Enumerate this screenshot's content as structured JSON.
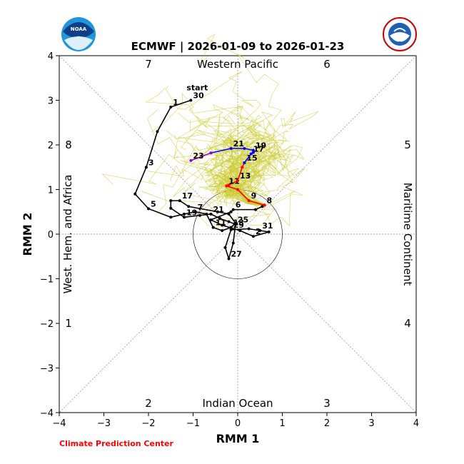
{
  "chart_data": {
    "type": "scatter",
    "title": "ECMWF | 2026-01-09 to 2026-01-23",
    "xlabel": "RMM 1",
    "ylabel": "RMM 2",
    "xlim": [
      -4,
      4
    ],
    "ylim": [
      -4,
      4
    ],
    "xticks": [
      "−4",
      "−3",
      "−2",
      "−1",
      "0",
      "1",
      "2",
      "3",
      "4"
    ],
    "yticks": [
      "−4",
      "−3",
      "−2",
      "−1",
      "0",
      "1",
      "2",
      "3",
      "4"
    ],
    "phase_numbers": {
      "p1": "1",
      "p2": "2",
      "p3": "3",
      "p4": "4",
      "p5": "5",
      "p6": "6",
      "p7": "7",
      "p8": "8"
    },
    "region_labels": {
      "top": "Western Pacific",
      "bottom": "Indian Ocean",
      "left": "West. Hem. and Africa",
      "right": "Maritime Continent"
    },
    "credit": "Climate Prediction Center",
    "start_label": "start",
    "colors": {
      "observed": "#000000",
      "forecast_week1": "#ff0000",
      "forecast_week2": "#0000ff",
      "forecast_tail": "#9900cc",
      "ensemble": "#cccc33",
      "credit": "#ff0000"
    },
    "observed_path": [
      {
        "x": -1.05,
        "y": 3.0,
        "label": "30"
      },
      {
        "x": -1.5,
        "y": 2.85,
        "label": "1"
      },
      {
        "x": -1.8,
        "y": 2.3,
        "label": ""
      },
      {
        "x": -2.05,
        "y": 1.5,
        "label": "3"
      },
      {
        "x": -2.3,
        "y": 0.9,
        "label": ""
      },
      {
        "x": -2.0,
        "y": 0.57,
        "label": "5"
      },
      {
        "x": -1.5,
        "y": 0.38,
        "label": ""
      },
      {
        "x": -1.2,
        "y": 0.45,
        "label": ""
      },
      {
        "x": -0.95,
        "y": 0.5,
        "label": "7"
      },
      {
        "x": -0.7,
        "y": 0.45,
        "label": ""
      },
      {
        "x": -0.55,
        "y": 0.15,
        "label": "11"
      },
      {
        "x": -0.35,
        "y": 0.08,
        "label": ""
      },
      {
        "x": -0.15,
        "y": 0.15,
        "label": "13"
      },
      {
        "x": -0.05,
        "y": 0.25,
        "label": ""
      },
      {
        "x": -0.2,
        "y": 0.45,
        "label": ""
      },
      {
        "x": -0.45,
        "y": 0.5,
        "label": ""
      },
      {
        "x": -1.1,
        "y": 0.62,
        "label": ""
      },
      {
        "x": -1.3,
        "y": 0.75,
        "label": "17"
      },
      {
        "x": -1.5,
        "y": 0.75,
        "label": ""
      },
      {
        "x": -1.5,
        "y": 0.58,
        "label": ""
      },
      {
        "x": -1.2,
        "y": 0.38,
        "label": "19"
      },
      {
        "x": -0.85,
        "y": 0.42,
        "label": ""
      },
      {
        "x": -0.6,
        "y": 0.45,
        "label": "21"
      },
      {
        "x": -0.4,
        "y": 0.35,
        "label": ""
      },
      {
        "x": -0.2,
        "y": 0.28,
        "label": ""
      },
      {
        "x": -0.05,
        "y": 0.22,
        "label": "25"
      },
      {
        "x": -0.1,
        "y": -0.2,
        "label": ""
      },
      {
        "x": -0.2,
        "y": -0.55,
        "label": "27"
      },
      {
        "x": -0.28,
        "y": -0.3,
        "label": ""
      },
      {
        "x": -0.15,
        "y": 0.1,
        "label": "29"
      },
      {
        "x": 0.25,
        "y": 0.12,
        "label": ""
      },
      {
        "x": 0.5,
        "y": 0.08,
        "label": "31"
      },
      {
        "x": 0.7,
        "y": 0.05,
        "label": ""
      },
      {
        "x": 0.35,
        "y": -0.05,
        "label": "2"
      },
      {
        "x": 0.05,
        "y": 0.08,
        "label": ""
      },
      {
        "x": -0.35,
        "y": 0.2,
        "label": ""
      },
      {
        "x": -0.6,
        "y": 0.32,
        "label": ""
      },
      {
        "x": -0.15,
        "y": 0.5,
        "label": ""
      },
      {
        "x": -0.1,
        "y": 0.55,
        "label": "6"
      },
      {
        "x": 0.4,
        "y": 0.55,
        "label": ""
      },
      {
        "x": 0.55,
        "y": 0.62,
        "label": ""
      },
      {
        "x": 0.6,
        "y": 0.65,
        "label": "8"
      }
    ],
    "forecast_week1": [
      {
        "x": 0.6,
        "y": 0.65,
        "label": ""
      },
      {
        "x": 0.25,
        "y": 0.75,
        "label": "9"
      },
      {
        "x": 0.0,
        "y": 1.0,
        "label": ""
      },
      {
        "x": -0.25,
        "y": 1.08,
        "label": "11"
      },
      {
        "x": -0.2,
        "y": 1.1,
        "label": ""
      },
      {
        "x": 0.0,
        "y": 1.2,
        "label": "13"
      },
      {
        "x": 0.1,
        "y": 1.5,
        "label": ""
      },
      {
        "x": 0.15,
        "y": 1.6,
        "label": "15"
      }
    ],
    "forecast_week2": [
      {
        "x": 0.15,
        "y": 1.6,
        "label": ""
      },
      {
        "x": 0.3,
        "y": 1.8,
        "label": "17"
      },
      {
        "x": 0.35,
        "y": 1.83,
        "label": ""
      },
      {
        "x": 0.35,
        "y": 1.88,
        "label": "19"
      },
      {
        "x": 0.15,
        "y": 1.92,
        "label": ""
      },
      {
        "x": -0.15,
        "y": 1.92,
        "label": "21"
      },
      {
        "x": -0.6,
        "y": 1.82,
        "label": ""
      }
    ],
    "forecast_tail": [
      {
        "x": -0.6,
        "y": 1.82,
        "label": ""
      },
      {
        "x": -1.05,
        "y": 1.65,
        "label": "23"
      }
    ]
  }
}
